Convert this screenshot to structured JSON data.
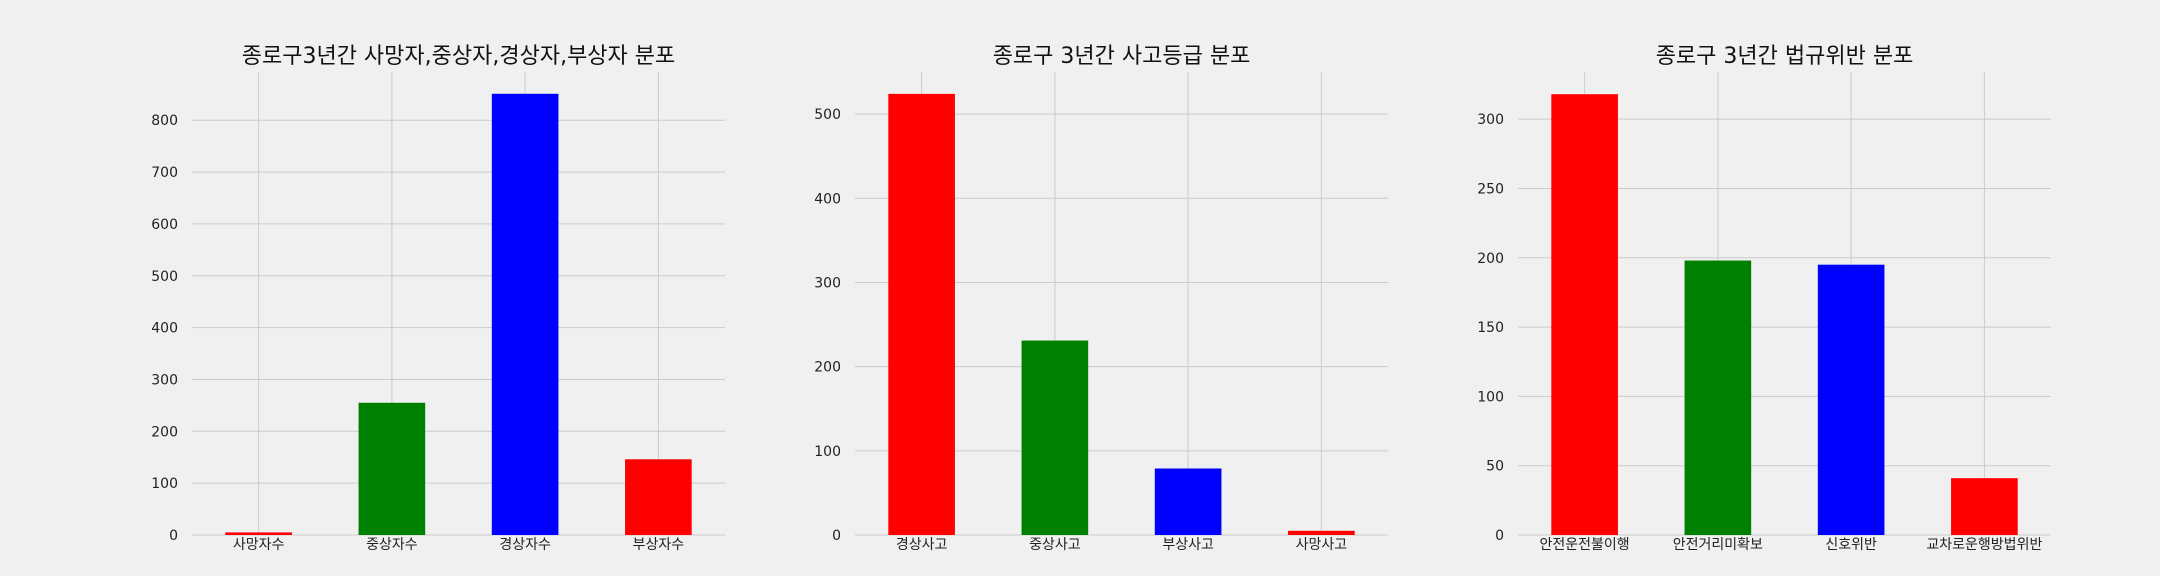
{
  "chart_data": [
    {
      "type": "bar",
      "title": "종로구3년간 사망자,중상자,경상자,부상자 분포",
      "xlabel": "",
      "ylabel": "",
      "categories": [
        "사망자수",
        "중상자수",
        "경상자수",
        "부상자수"
      ],
      "values": [
        5,
        255,
        851,
        146
      ],
      "colors": [
        "#ff0000",
        "#008000",
        "#0000ff",
        "#ff0000"
      ],
      "ylim": [
        0,
        893
      ],
      "yticks": [
        0,
        100,
        200,
        300,
        400,
        500,
        600,
        700,
        800
      ],
      "grid": true
    },
    {
      "type": "bar",
      "title": "종로구 3년간 사고등급 분포",
      "xlabel": "",
      "ylabel": "",
      "categories": [
        "경상사고",
        "중상사고",
        "부상사고",
        "사망사고"
      ],
      "values": [
        524,
        231,
        79,
        5
      ],
      "colors": [
        "#ff0000",
        "#008000",
        "#0000ff",
        "#ff0000"
      ],
      "ylim": [
        0,
        550
      ],
      "yticks": [
        0,
        100,
        200,
        300,
        400,
        500
      ],
      "grid": true
    },
    {
      "type": "bar",
      "title": "종로구 3년간 법규위반 분포",
      "xlabel": "",
      "ylabel": "",
      "categories": [
        "안전운전불이행",
        "안전거리미확보",
        "신호위반",
        "교차로운행방법위반"
      ],
      "values": [
        318,
        198,
        195,
        41
      ],
      "colors": [
        "#ff0000",
        "#008000",
        "#0000ff",
        "#ff0000"
      ],
      "ylim": [
        0,
        334
      ],
      "yticks": [
        0,
        50,
        100,
        150,
        200,
        250,
        300
      ],
      "grid": true
    }
  ]
}
